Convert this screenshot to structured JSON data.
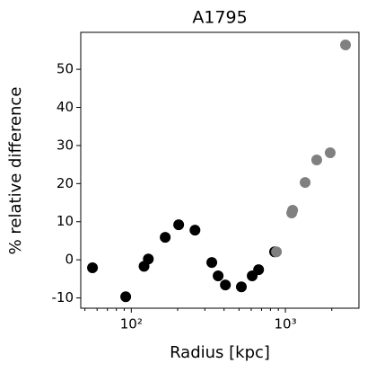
{
  "chart_data": {
    "type": "scatter",
    "title": "A1795",
    "xlabel": "Radius [kpc]",
    "ylabel": "% relative difference",
    "xscale": "log",
    "xlim": [
      47,
      3000
    ],
    "ylim": [
      -12.7,
      59.7
    ],
    "xticks": [
      {
        "value": 100,
        "label": "10²"
      },
      {
        "value": 1000,
        "label": "10³"
      }
    ],
    "xminorticks": [
      50,
      60,
      70,
      80,
      90,
      200,
      300,
      400,
      500,
      600,
      700,
      800,
      900,
      2000
    ],
    "yticks": [
      -10,
      0,
      10,
      20,
      30,
      40,
      50
    ],
    "grid": false,
    "series": [
      {
        "color": "#000000",
        "x": [
          56,
          92,
          121,
          129,
          166,
          203,
          259,
          333,
          366,
          408,
          518,
          609,
          670,
          851
        ],
        "values": [
          -2.1,
          -9.7,
          -1.7,
          0.2,
          5.9,
          9.2,
          7.8,
          -0.7,
          -4.2,
          -6.6,
          -7.1,
          -4.2,
          -2.6,
          2.1
        ]
      },
      {
        "color": "#808080",
        "x": [
          875,
          1099,
          1114,
          1343,
          1597,
          1953,
          2455
        ],
        "values": [
          2.1,
          12.3,
          13.0,
          20.3,
          26.2,
          28.1,
          56.4
        ]
      }
    ]
  }
}
